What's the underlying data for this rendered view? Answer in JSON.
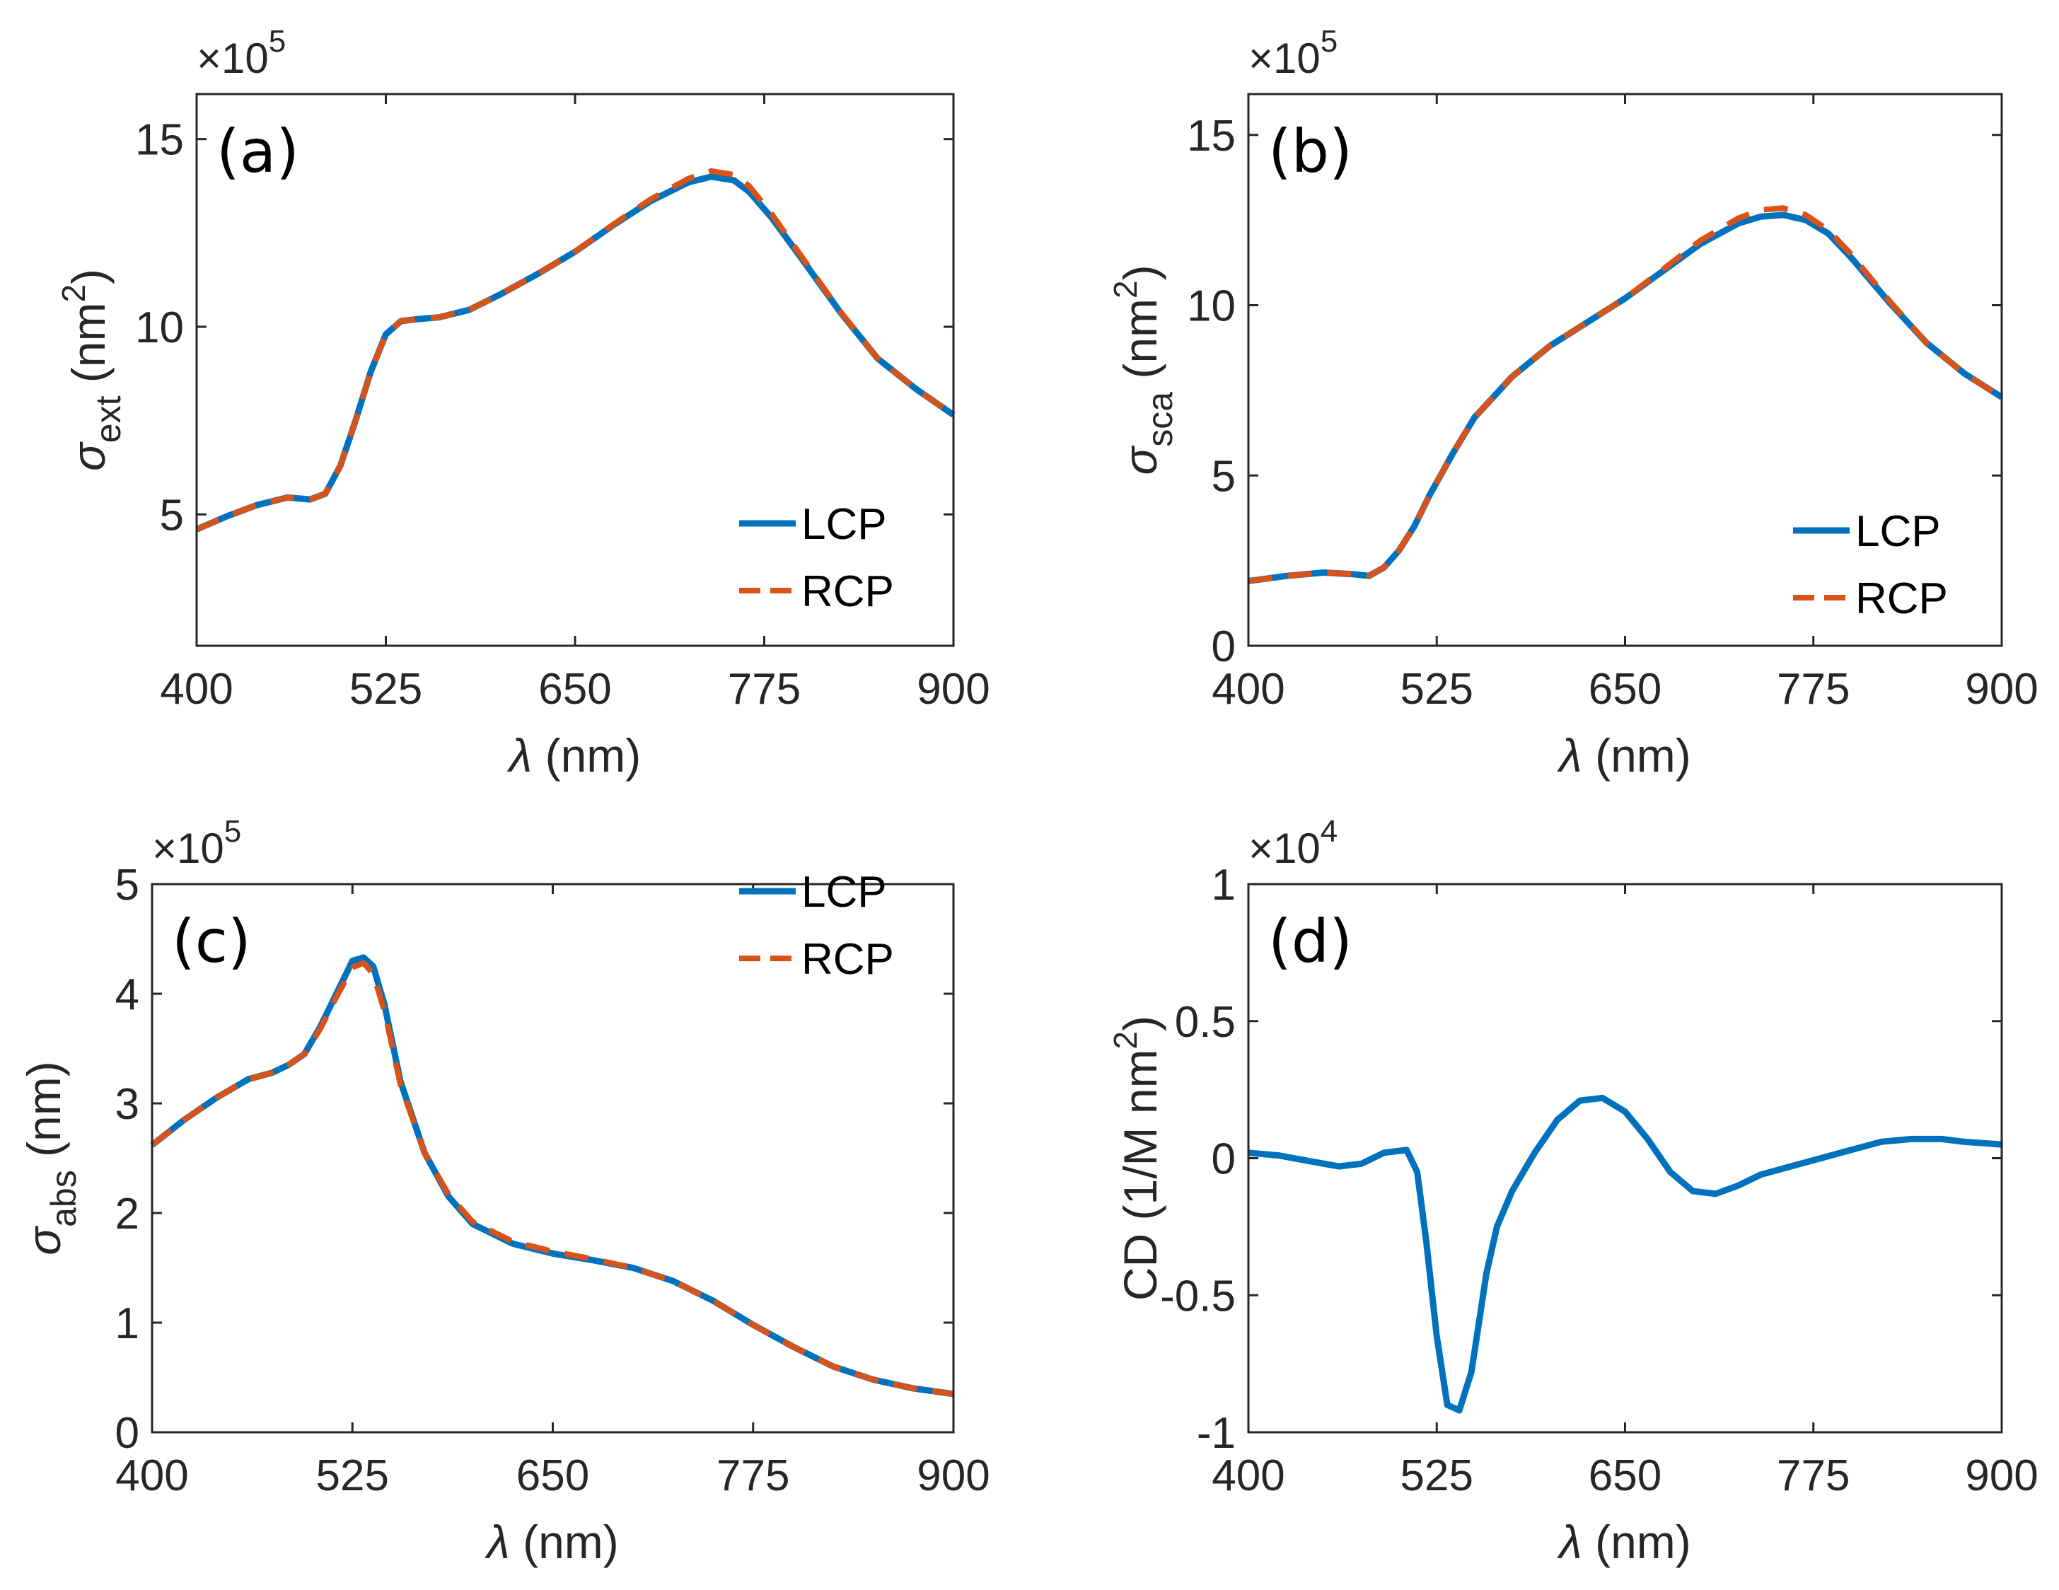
{
  "colors": {
    "lcp": "#0072BD",
    "rcp": "#D95319",
    "axis": "#262626"
  },
  "chart_data": [
    {
      "type": "line",
      "panel": "(a)",
      "xlabel": "λ (nm)",
      "ylabel_symbol": "σ",
      "ylabel_sub": "ext",
      "ylabel_unit": "(nm",
      "ylabel_sup": "2",
      "ylabel_close": ")",
      "exponent_base": "×10",
      "exponent_power": "5",
      "xlim": [
        400,
        900
      ],
      "ylim": [
        1.5,
        16.2
      ],
      "xticks": [
        400,
        525,
        650,
        775,
        900
      ],
      "xtick_labels": [
        "400",
        "525",
        "650",
        "775",
        "900"
      ],
      "yticks": [
        5,
        10,
        15
      ],
      "ytick_labels": [
        "5",
        "10",
        "15"
      ],
      "legend": [
        "LCP",
        "RCP"
      ],
      "legend_position": "bottom-right",
      "series": [
        {
          "name": "LCP",
          "style": "solid",
          "x": [
            400,
            420,
            440,
            460,
            475,
            485,
            495,
            505,
            515,
            525,
            535,
            545,
            560,
            580,
            600,
            625,
            650,
            675,
            700,
            725,
            740,
            755,
            765,
            780,
            800,
            825,
            850,
            875,
            900
          ],
          "y": [
            4.6,
            4.95,
            5.25,
            5.45,
            5.4,
            5.55,
            6.3,
            7.5,
            8.8,
            9.8,
            10.15,
            10.2,
            10.25,
            10.45,
            10.85,
            11.4,
            12.0,
            12.7,
            13.35,
            13.85,
            14.0,
            13.9,
            13.6,
            12.9,
            11.8,
            10.4,
            9.15,
            8.35,
            7.65
          ]
        },
        {
          "name": "RCP",
          "style": "dashed",
          "x": [
            400,
            420,
            440,
            460,
            475,
            485,
            495,
            505,
            515,
            525,
            535,
            545,
            560,
            580,
            600,
            625,
            650,
            675,
            700,
            725,
            740,
            755,
            765,
            780,
            800,
            825,
            850,
            875,
            900
          ],
          "y": [
            4.6,
            4.95,
            5.25,
            5.45,
            5.4,
            5.55,
            6.3,
            7.5,
            8.8,
            9.8,
            10.15,
            10.2,
            10.25,
            10.45,
            10.85,
            11.4,
            12.0,
            12.72,
            13.4,
            13.95,
            14.15,
            14.05,
            13.75,
            13.0,
            11.85,
            10.42,
            9.15,
            8.35,
            7.65
          ]
        }
      ]
    },
    {
      "type": "line",
      "panel": "(b)",
      "xlabel": "λ (nm)",
      "ylabel_symbol": "σ",
      "ylabel_sub": "sca",
      "ylabel_unit": "(nm",
      "ylabel_sup": "2",
      "ylabel_close": ")",
      "exponent_base": "×10",
      "exponent_power": "5",
      "xlim": [
        400,
        900
      ],
      "ylim": [
        0,
        16.2
      ],
      "xticks": [
        400,
        525,
        650,
        775,
        900
      ],
      "xtick_labels": [
        "400",
        "525",
        "650",
        "775",
        "900"
      ],
      "yticks": [
        0,
        5,
        10,
        15
      ],
      "ytick_labels": [
        "0",
        "5",
        "10",
        "15"
      ],
      "legend": [
        "LCP",
        "RCP"
      ],
      "legend_position": "bottom-right",
      "series": [
        {
          "name": "LCP",
          "style": "solid",
          "x": [
            400,
            425,
            450,
            470,
            480,
            490,
            500,
            510,
            520,
            535,
            550,
            575,
            600,
            625,
            650,
            675,
            700,
            725,
            740,
            755,
            770,
            785,
            800,
            825,
            850,
            875,
            900
          ],
          "y": [
            1.9,
            2.05,
            2.15,
            2.1,
            2.05,
            2.3,
            2.8,
            3.5,
            4.4,
            5.6,
            6.7,
            7.9,
            8.8,
            9.5,
            10.2,
            11.0,
            11.8,
            12.4,
            12.6,
            12.65,
            12.5,
            12.1,
            11.4,
            10.1,
            8.9,
            8.0,
            7.3
          ]
        },
        {
          "name": "RCP",
          "style": "dashed",
          "x": [
            400,
            425,
            450,
            470,
            480,
            490,
            500,
            510,
            520,
            535,
            550,
            575,
            600,
            625,
            650,
            675,
            700,
            725,
            740,
            755,
            770,
            785,
            800,
            825,
            850,
            875,
            900
          ],
          "y": [
            1.9,
            2.05,
            2.15,
            2.1,
            2.05,
            2.3,
            2.8,
            3.5,
            4.4,
            5.6,
            6.7,
            7.9,
            8.8,
            9.5,
            10.2,
            11.05,
            11.9,
            12.55,
            12.8,
            12.85,
            12.65,
            12.2,
            11.5,
            10.15,
            8.9,
            8.0,
            7.3
          ]
        }
      ]
    },
    {
      "type": "line",
      "panel": "(c)",
      "xlabel": "λ (nm)",
      "ylabel_symbol": "σ",
      "ylabel_sub": "abs",
      "ylabel_unit": "(nm)",
      "ylabel_sup": "",
      "ylabel_close": "",
      "exponent_base": "×10",
      "exponent_power": "5",
      "xlim": [
        400,
        900
      ],
      "ylim": [
        0,
        5
      ],
      "xticks": [
        400,
        525,
        650,
        775,
        900
      ],
      "xtick_labels": [
        "400",
        "525",
        "650",
        "775",
        "900"
      ],
      "yticks": [
        0,
        1,
        2,
        3,
        4,
        5
      ],
      "ytick_labels": [
        "0",
        "1",
        "2",
        "3",
        "4",
        "5"
      ],
      "legend": [
        "LCP",
        "RCP"
      ],
      "legend_position": "top-right",
      "series": [
        {
          "name": "LCP",
          "style": "solid",
          "x": [
            400,
            420,
            440,
            460,
            475,
            485,
            495,
            505,
            515,
            525,
            532,
            538,
            545,
            555,
            570,
            585,
            600,
            625,
            650,
            675,
            700,
            725,
            750,
            775,
            800,
            825,
            850,
            875,
            900
          ],
          "y": [
            2.62,
            2.85,
            3.05,
            3.22,
            3.28,
            3.35,
            3.45,
            3.7,
            4.0,
            4.3,
            4.33,
            4.25,
            3.9,
            3.2,
            2.55,
            2.15,
            1.9,
            1.72,
            1.63,
            1.57,
            1.5,
            1.38,
            1.2,
            0.98,
            0.78,
            0.6,
            0.48,
            0.4,
            0.35
          ]
        },
        {
          "name": "RCP",
          "style": "dashed",
          "x": [
            400,
            420,
            440,
            460,
            475,
            485,
            495,
            505,
            515,
            525,
            532,
            538,
            545,
            555,
            570,
            585,
            600,
            625,
            650,
            675,
            700,
            725,
            750,
            775,
            800,
            825,
            850,
            875,
            900
          ],
          "y": [
            2.62,
            2.85,
            3.05,
            3.22,
            3.28,
            3.35,
            3.45,
            3.68,
            3.97,
            4.24,
            4.28,
            4.18,
            3.84,
            3.17,
            2.55,
            2.17,
            1.92,
            1.74,
            1.65,
            1.58,
            1.5,
            1.38,
            1.2,
            0.98,
            0.78,
            0.6,
            0.48,
            0.4,
            0.35
          ]
        }
      ]
    },
    {
      "type": "line",
      "panel": "(d)",
      "xlabel": "λ (nm)",
      "ylabel_text": "CD (1/M nm",
      "ylabel_sup": "2",
      "ylabel_close": ")",
      "exponent_base": "×10",
      "exponent_power": "4",
      "xlim": [
        400,
        900
      ],
      "ylim": [
        -1,
        1
      ],
      "xticks": [
        400,
        525,
        650,
        775,
        900
      ],
      "xtick_labels": [
        "400",
        "525",
        "650",
        "775",
        "900"
      ],
      "yticks": [
        -1,
        -0.5,
        0,
        0.5,
        1
      ],
      "ytick_labels": [
        "-1",
        "-0.5",
        "0",
        "0.5",
        "1"
      ],
      "series": [
        {
          "name": "CD",
          "style": "solid",
          "x": [
            400,
            420,
            440,
            460,
            475,
            490,
            505,
            512,
            518,
            525,
            532,
            540,
            548,
            553,
            558,
            565,
            575,
            590,
            605,
            620,
            635,
            650,
            665,
            680,
            695,
            710,
            725,
            740,
            760,
            780,
            800,
            820,
            840,
            860,
            875,
            900
          ],
          "y": [
            0.02,
            0.01,
            -0.01,
            -0.03,
            -0.02,
            0.02,
            0.03,
            -0.05,
            -0.3,
            -0.65,
            -0.9,
            -0.92,
            -0.78,
            -0.6,
            -0.42,
            -0.25,
            -0.12,
            0.02,
            0.14,
            0.21,
            0.22,
            0.17,
            0.07,
            -0.05,
            -0.12,
            -0.13,
            -0.1,
            -0.06,
            -0.03,
            0.0,
            0.03,
            0.06,
            0.07,
            0.07,
            0.06,
            0.05
          ]
        }
      ]
    }
  ]
}
